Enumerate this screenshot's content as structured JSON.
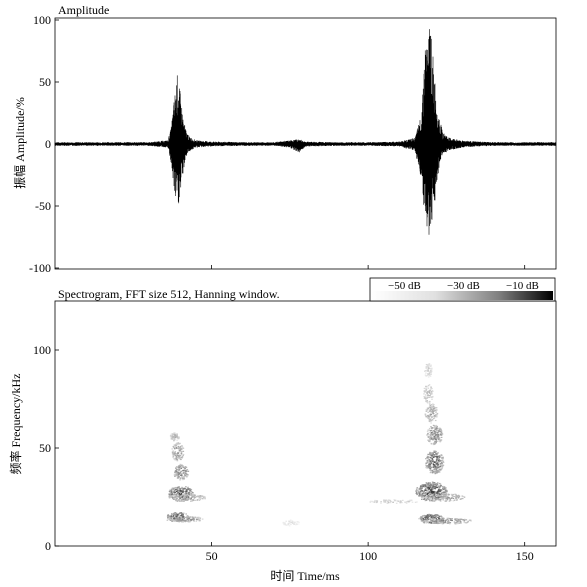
{
  "chart_data": [
    {
      "type": "line",
      "title": "Amplitude",
      "ylabel": "振幅 Amplitude/%",
      "xlabel": "",
      "xlim": [
        0,
        160
      ],
      "ylim": [
        -100,
        100
      ],
      "yticks": [
        100,
        50,
        0,
        -50,
        -100
      ],
      "xticks": [
        50,
        100,
        150
      ],
      "grid": false,
      "series": [
        {
          "x": [
            0,
            10,
            20,
            30,
            36,
            37,
            38,
            39,
            40,
            41,
            42,
            43,
            45,
            50,
            60,
            70,
            75,
            78,
            80,
            90,
            100,
            110,
            115,
            117,
            118,
            119,
            120,
            121,
            122,
            123,
            124,
            126,
            130,
            135,
            140,
            150,
            160
          ],
          "max": [
            1.5,
            1.5,
            1.5,
            1.5,
            3,
            12,
            35,
            57,
            42,
            20,
            10,
            6,
            3,
            2,
            1.5,
            1.5,
            3,
            4,
            2,
            1.5,
            1.5,
            2,
            5,
            25,
            75,
            90,
            100,
            60,
            35,
            18,
            9,
            5,
            3,
            2,
            1.5,
            1.5,
            1.5
          ],
          "min": [
            -1.5,
            -1.5,
            -1.5,
            -1.5,
            -3,
            -15,
            -40,
            -55,
            -45,
            -22,
            -10,
            -6,
            -3,
            -2,
            -1.5,
            -1.5,
            -3,
            -7,
            -2,
            -1.5,
            -1.5,
            -2,
            -6,
            -30,
            -60,
            -72,
            -78,
            -55,
            -30,
            -15,
            -8,
            -5,
            -3,
            -2,
            -1.5,
            -1.5,
            -1.5
          ]
        }
      ]
    },
    {
      "type": "heatmap",
      "title": "Spectrogram, FFT size 512, Hanning window.",
      "ylabel": "频率 Frequency/kHz",
      "xlabel": "时间 Time/ms",
      "xlim": [
        0,
        160
      ],
      "ylim": [
        0,
        125
      ],
      "xticks": [
        50,
        100,
        150
      ],
      "yticks": [
        100,
        50,
        0
      ],
      "colorbar": {
        "labels": [
          "−50 dB",
          "−30 dB",
          "−10 dB"
        ],
        "scale": "white-to-black"
      },
      "blobs": [
        {
          "t": 39,
          "f": 15,
          "dt": 3.5,
          "df": 2.5,
          "level": 0.85
        },
        {
          "t": 41,
          "f": 14,
          "dt": 6,
          "df": 1.5,
          "level": 0.55
        },
        {
          "t": 40,
          "f": 27,
          "dt": 4,
          "df": 4,
          "level": 0.8
        },
        {
          "t": 42,
          "f": 25,
          "dt": 6,
          "df": 2,
          "level": 0.5
        },
        {
          "t": 40,
          "f": 38,
          "dt": 2.5,
          "df": 4,
          "level": 0.6
        },
        {
          "t": 39,
          "f": 48,
          "dt": 2,
          "df": 5,
          "level": 0.5
        },
        {
          "t": 38,
          "f": 56,
          "dt": 1.5,
          "df": 2,
          "level": 0.4
        },
        {
          "t": 120,
          "f": 14,
          "dt": 4,
          "df": 2.5,
          "level": 0.9
        },
        {
          "t": 125,
          "f": 13,
          "dt": 8,
          "df": 1.5,
          "level": 0.55
        },
        {
          "t": 120,
          "f": 28,
          "dt": 5,
          "df": 5,
          "level": 0.85
        },
        {
          "t": 124,
          "f": 25,
          "dt": 7,
          "df": 2,
          "level": 0.5
        },
        {
          "t": 121,
          "f": 43,
          "dt": 3,
          "df": 6,
          "level": 0.75
        },
        {
          "t": 121,
          "f": 57,
          "dt": 2.5,
          "df": 5,
          "level": 0.6
        },
        {
          "t": 120,
          "f": 68,
          "dt": 2,
          "df": 5,
          "level": 0.45
        },
        {
          "t": 119,
          "f": 78,
          "dt": 1.5,
          "df": 5,
          "level": 0.35
        },
        {
          "t": 119,
          "f": 90,
          "dt": 1.2,
          "df": 4,
          "level": 0.25
        },
        {
          "t": 108,
          "f": 23,
          "dt": 8,
          "df": 1,
          "level": 0.3
        },
        {
          "t": 75,
          "f": 12,
          "dt": 3,
          "df": 1.5,
          "level": 0.15
        }
      ]
    }
  ]
}
